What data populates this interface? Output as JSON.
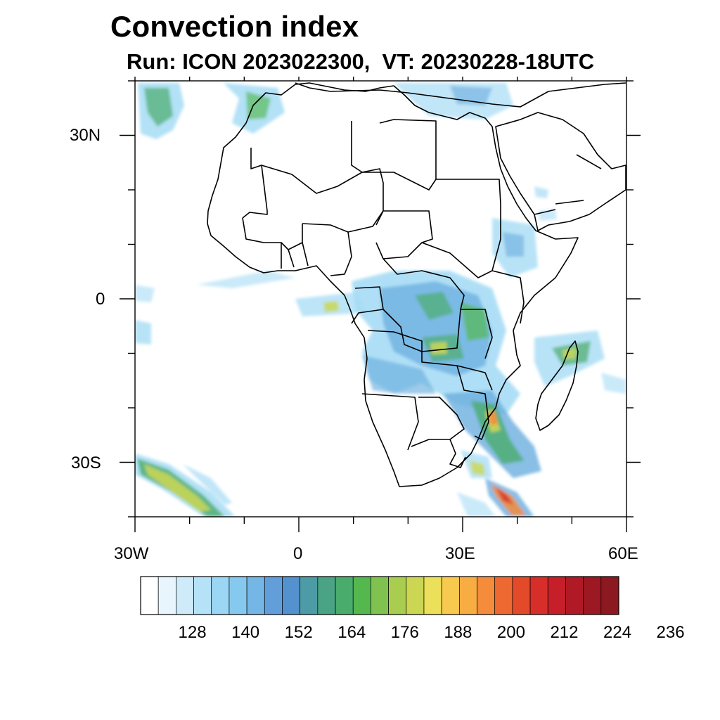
{
  "title": "Convection index",
  "subtitle": "Run: ICON 2023022300,  VT: 20230228-18UTC",
  "map": {
    "projection": "cylindrical-equidistant",
    "lon_range": [
      -30,
      60
    ],
    "lat_range": [
      -40,
      40
    ],
    "lat_ticks": [
      {
        "value": 30,
        "label": "30N"
      },
      {
        "value": 0,
        "label": "0"
      },
      {
        "value": -30,
        "label": "30S"
      }
    ],
    "lon_ticks": [
      {
        "value": -30,
        "label": "30W"
      },
      {
        "value": 0,
        "label": "0"
      },
      {
        "value": 30,
        "label": "30E"
      },
      {
        "value": 60,
        "label": "60E"
      }
    ]
  },
  "colorbar": {
    "colors": [
      "#ffffff",
      "#e8f5fd",
      "#cfebfa",
      "#b6e2f8",
      "#9bd6f4",
      "#86c9ee",
      "#74b6e6",
      "#629fda",
      "#5392cf",
      "#4d9ba6",
      "#4aa384",
      "#4aac6c",
      "#55b84f",
      "#7fc24f",
      "#a8cd4f",
      "#cbd753",
      "#ece05a",
      "#f7c94e",
      "#f8ad43",
      "#f58c3b",
      "#ee6931",
      "#e34a2a",
      "#d72e29",
      "#c61f2a",
      "#b01926",
      "#9c1823",
      "#8c1820"
    ],
    "tick_labels": [
      "128",
      "140",
      "152",
      "164",
      "176",
      "188",
      "200",
      "212",
      "224",
      "236"
    ]
  },
  "field_colors": {
    "light": "#a6dcf5",
    "blue": "#6aaedf",
    "green": "#4aac6c",
    "yellow": "#cbd753",
    "orange": "#f58c3b",
    "red": "#d72e29"
  }
}
